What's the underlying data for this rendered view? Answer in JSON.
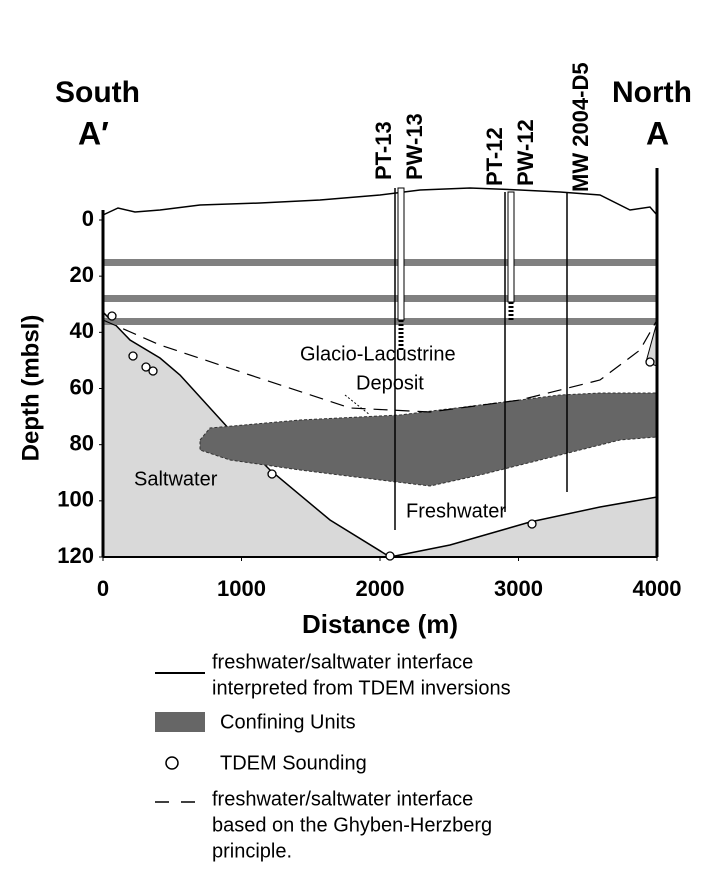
{
  "header": {
    "left_direction": "South",
    "left_label": "A′",
    "right_direction": "North",
    "right_label": "A"
  },
  "y_axis": {
    "label": "Depth (mbsl)",
    "ticks": [
      0,
      20,
      40,
      60,
      80,
      100,
      120
    ]
  },
  "x_axis": {
    "label": "Distance (m)",
    "ticks": [
      0,
      1000,
      2000,
      3000,
      4000
    ]
  },
  "wells": [
    "PT-13",
    "PW-13",
    "PT-12",
    "PW-12",
    "MW 2004-D5"
  ],
  "annotations": {
    "deposit": [
      "Glacio-Lacustrine",
      "Deposit"
    ],
    "saltwater": "Saltwater",
    "freshwater": "Freshwater"
  },
  "legend": [
    {
      "lines": [
        "freshwater/saltwater interface",
        "interpreted from TDEM inversions"
      ]
    },
    {
      "lines": [
        "Confining Units"
      ]
    },
    {
      "lines": [
        "TDEM Sounding"
      ]
    },
    {
      "lines": [
        "freshwater/saltwater interface",
        "based on the Ghyben-Herzberg",
        "principle."
      ]
    }
  ]
}
